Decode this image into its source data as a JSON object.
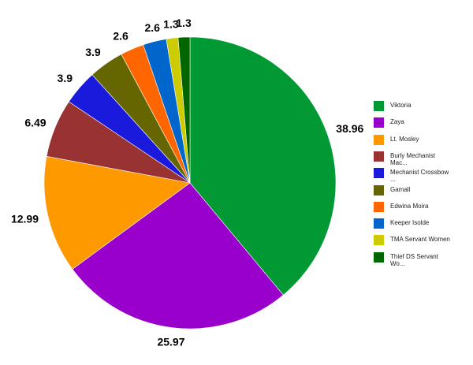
{
  "chart_data": {
    "type": "pie",
    "slices": [
      {
        "label": "Viktoria",
        "legend_text": "Viktoria",
        "value": 38.96,
        "value_label": "38.96",
        "color": "#009933"
      },
      {
        "label": "Zaya",
        "legend_text": "Zaya",
        "value": 25.97,
        "value_label": "25.97",
        "color": "#9900cc"
      },
      {
        "label": "Lt. Mosley",
        "legend_text": "Lt. Mosley",
        "value": 12.99,
        "value_label": "12.99",
        "color": "#ff9900"
      },
      {
        "label": "Burly Mechanist Mac...",
        "legend_text": "Burly Mechanist\nMac...",
        "value": 6.49,
        "value_label": "6.49",
        "color": "#993333"
      },
      {
        "label": "Mechanist Crossbow ...",
        "legend_text": "Mechanist Crossbow\n...",
        "value": 3.9,
        "value_label": "3.9",
        "color": "#1a1add"
      },
      {
        "label": "Gamall",
        "legend_text": "Gamall",
        "value": 3.9,
        "value_label": "3.9",
        "color": "#666600"
      },
      {
        "label": "Edwina Moira",
        "legend_text": "Edwina Moira",
        "value": 2.6,
        "value_label": "2.6",
        "color": "#ff6600"
      },
      {
        "label": "Keeper Isolde",
        "legend_text": "Keeper Isolde",
        "value": 2.6,
        "value_label": "2.6",
        "color": "#0066cc"
      },
      {
        "label": "TMA Servant Women",
        "legend_text": "TMA Servant Women",
        "value": 1.3,
        "value_label": "1.3",
        "color": "#cccc00"
      },
      {
        "label": "Thief DS Servant Wo...",
        "legend_text": "Thief DS Servant\nWo...",
        "value": 1.3,
        "value_label": "1.3",
        "color": "#006600"
      }
    ],
    "legend_position": "right",
    "start": "top",
    "direction": "clockwise"
  }
}
